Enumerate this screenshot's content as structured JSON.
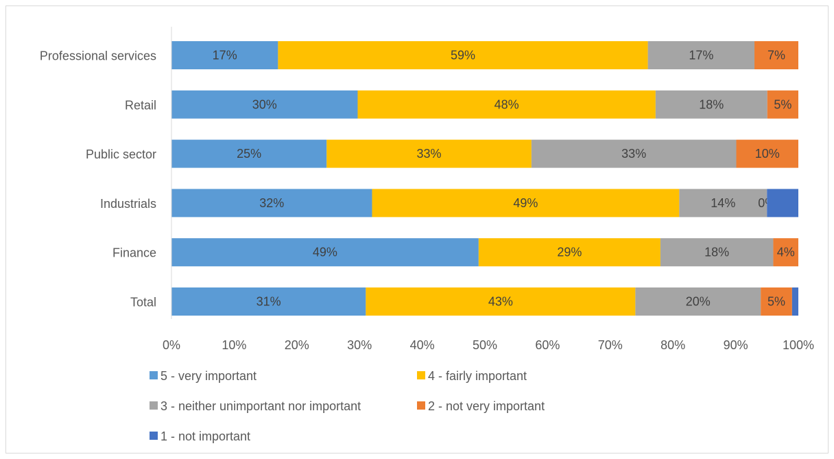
{
  "chart_data": {
    "type": "bar",
    "orientation": "horizontal",
    "stacked": true,
    "normalized_percent": true,
    "categories": [
      "Professional services",
      "Retail",
      "Public sector",
      "Industrials",
      "Finance",
      "Total"
    ],
    "series": [
      {
        "name": "5 - very important",
        "color": "#5b9bd5",
        "values": [
          17,
          30,
          25,
          32,
          49,
          31
        ],
        "labels": [
          "17%",
          "30%",
          "25%",
          "32%",
          "49%",
          "31%"
        ]
      },
      {
        "name": "4 - fairly important",
        "color": "#ffc000",
        "values": [
          59,
          48,
          33,
          49,
          29,
          43
        ],
        "labels": [
          "59%",
          "48%",
          "33%",
          "49%",
          "29%",
          "43%"
        ]
      },
      {
        "name": "3 - neither unimportant nor important",
        "color": "#a5a5a5",
        "values": [
          17,
          18,
          33,
          14,
          18,
          20
        ],
        "labels": [
          "17%",
          "18%",
          "33%",
          "14%",
          "18%",
          "20%"
        ]
      },
      {
        "name": "2 - not very important",
        "color": "#ed7d31",
        "values": [
          7,
          5,
          10,
          0,
          4,
          5
        ],
        "labels": [
          "7%",
          "5%",
          "10%",
          "0%",
          "4%",
          "5%"
        ]
      },
      {
        "name": "1 - not important",
        "color": "#4472c4",
        "values": [
          0,
          0,
          0,
          5,
          0,
          1
        ],
        "labels": [
          "",
          "",
          "",
          "",
          "",
          ""
        ]
      }
    ],
    "x_ticks": [
      "0%",
      "10%",
      "20%",
      "30%",
      "40%",
      "50%",
      "60%",
      "70%",
      "80%",
      "90%",
      "100%"
    ],
    "xlim": [
      0,
      100
    ],
    "grid": false,
    "legend_position": "bottom-left"
  }
}
